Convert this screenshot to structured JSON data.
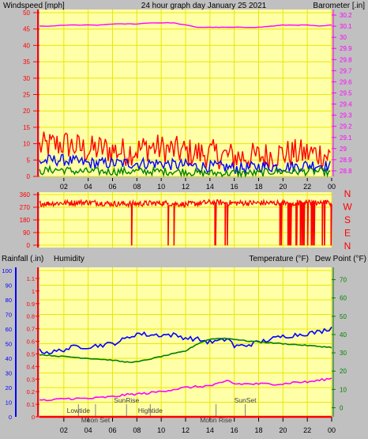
{
  "colors": {
    "background": "#c0c0c0",
    "plot_bg": "#ffffa8",
    "red": "#ff0000",
    "blue": "#0000ff",
    "green": "#008000",
    "magenta": "#ff00ff",
    "yellow": "#e8e800",
    "gray": "#808080"
  },
  "chart_data": [
    {
      "type": "line",
      "id": "wind-baro",
      "title": "24 hour graph day   January 25 2021",
      "left_label": "Windspeed [mph]",
      "right_label": "Barometer [.in]",
      "x_ticks": [
        "02",
        "04",
        "06",
        "08",
        "10",
        "12",
        "14",
        "16",
        "18",
        "20",
        "22",
        "00"
      ],
      "left_ticks": [
        "0",
        "5",
        "10",
        "15",
        "20",
        "25",
        "30",
        "35",
        "40",
        "45",
        "50"
      ],
      "right_ticks": [
        "28.8",
        "28.9",
        "29",
        "29.1",
        "29.2",
        "29.3",
        "29.4",
        "29.5",
        "29.6",
        "29.7",
        "29.8",
        "29.9",
        "30",
        "30.1",
        "30.2"
      ],
      "ylim_left": [
        0,
        50
      ],
      "ylim_right": [
        28.75,
        30.25
      ],
      "xlim": [
        0,
        24
      ],
      "series": [
        {
          "key": "gust",
          "color": "red",
          "x": [
            0,
            1,
            2,
            3,
            4,
            5,
            6,
            7,
            8,
            9,
            10,
            11,
            12,
            13,
            14,
            15,
            16,
            17,
            18,
            19,
            20,
            21,
            22,
            23,
            24
          ],
          "y": [
            9,
            9.5,
            10,
            9,
            8,
            8.5,
            8,
            7.5,
            8,
            9,
            8.5,
            8,
            7.5,
            7,
            7,
            6.5,
            6,
            6,
            6,
            6.5,
            7,
            7,
            7,
            7,
            6
          ]
        },
        {
          "key": "avg",
          "color": "blue",
          "x": [
            0,
            1,
            2,
            3,
            4,
            5,
            6,
            7,
            8,
            9,
            10,
            11,
            12,
            13,
            14,
            15,
            16,
            17,
            18,
            19,
            20,
            21,
            22,
            23,
            24
          ],
          "y": [
            4.5,
            5,
            5,
            4.5,
            4,
            4,
            4,
            4,
            4,
            4,
            4,
            3.5,
            3.5,
            3,
            3,
            3,
            2.5,
            2.5,
            3,
            3,
            3,
            3,
            3.5,
            3.5,
            3
          ]
        },
        {
          "key": "lull",
          "color": "green",
          "x": [
            0,
            1,
            2,
            3,
            4,
            5,
            6,
            7,
            8,
            9,
            10,
            11,
            12,
            13,
            14,
            15,
            16,
            17,
            18,
            19,
            20,
            21,
            22,
            23,
            24
          ],
          "y": [
            1.5,
            2,
            2,
            1.5,
            1.5,
            1.5,
            1.5,
            1.5,
            1.5,
            1.5,
            1.5,
            1.5,
            1.5,
            1,
            1,
            1,
            1,
            1,
            1,
            1.5,
            1.5,
            1.5,
            1.5,
            1.5,
            1
          ]
        },
        {
          "key": "barometer",
          "color": "magenta",
          "axis": "right",
          "x": [
            0,
            1,
            2,
            3,
            4,
            5,
            6,
            7,
            8,
            9,
            10,
            11,
            12,
            13,
            14,
            15,
            16,
            17,
            18,
            19,
            20,
            21,
            22,
            23,
            24
          ],
          "y": [
            30.1,
            30.1,
            30.11,
            30.11,
            30.11,
            30.11,
            30.12,
            30.12,
            30.12,
            30.13,
            30.13,
            30.13,
            30.11,
            30.09,
            30.09,
            30.09,
            30.09,
            30.09,
            30.09,
            30.1,
            30.11,
            30.11,
            30.11,
            30.1,
            30.11
          ]
        }
      ]
    },
    {
      "type": "line",
      "id": "wind-direction",
      "right_labels": [
        "N",
        "W",
        "S",
        "E",
        "N"
      ],
      "left_ticks": [
        "0",
        "90",
        "180",
        "270",
        "360"
      ],
      "ylim": [
        0,
        360
      ],
      "xlim": [
        0,
        24
      ],
      "series": [
        {
          "key": "direction",
          "color": "red",
          "base": [
            0,
            295,
            2,
            300,
            4,
            305,
            6,
            295,
            8,
            295,
            10,
            300,
            12,
            290,
            14,
            305,
            16,
            300,
            18,
            300,
            20,
            300,
            22,
            305,
            24,
            300
          ],
          "drops": [
            [
              7.55,
              0
            ],
            [
              10.55,
              0
            ],
            [
              11.05,
              0
            ],
            [
              14.4,
              0
            ],
            [
              14.45,
              0
            ],
            [
              15.25,
              10
            ],
            [
              15.45,
              10
            ],
            [
              20.65,
              0
            ],
            [
              21.05,
              0
            ],
            [
              23.95,
              0
            ]
          ],
          "dense_dropout_range": [
            19.7,
            23.5
          ]
        }
      ]
    },
    {
      "type": "line",
      "id": "rain-humidity-temp",
      "left_label_rain": "Rainfall (.in)",
      "left_label_humidity": "Humidity",
      "right_label_temp": "Temperature (°F)",
      "right_label_dew": "Dew Point (°F)",
      "x_ticks": [
        "02",
        "04",
        "06",
        "08",
        "10",
        "12",
        "14",
        "16",
        "18",
        "20",
        "22",
        "00"
      ],
      "humidity_ticks": [
        "0",
        "10",
        "20",
        "30",
        "40",
        "50",
        "60",
        "70",
        "80",
        "90",
        "100"
      ],
      "rain_ticks": [
        "0",
        "0.1",
        "0.2",
        "0.3",
        "0.4",
        "0.5",
        "0.6",
        "0.7",
        "0.8",
        "0.9",
        "1",
        "1.1"
      ],
      "temp_ticks": [
        "0",
        "10",
        "20",
        "30",
        "40",
        "50",
        "60",
        "70"
      ],
      "ylim_humidity": [
        0,
        100
      ],
      "ylim_rain": [
        0,
        1.1
      ],
      "ylim_temp": [
        -5,
        75
      ],
      "xlim": [
        0,
        24
      ],
      "annotations": [
        {
          "label": "Lowtide",
          "x": 3.2,
          "row": 2
        },
        {
          "label": "Moon Set",
          "x": 4.6,
          "row": 3
        },
        {
          "label": "SunRise",
          "x": 7.15,
          "row": 1
        },
        {
          "label": "Hightide",
          "x": 9.1,
          "row": 2
        },
        {
          "label": "Moon Rise",
          "x": 14.5,
          "row": 3
        },
        {
          "label": "SunSet",
          "x": 16.9,
          "row": 1
        }
      ],
      "series": [
        {
          "key": "humidity",
          "color": "blue",
          "axis": "humidity",
          "x": [
            0,
            1,
            2,
            3,
            4,
            5,
            6,
            7,
            8,
            9,
            10,
            11,
            12,
            13,
            14,
            15,
            15.5,
            16,
            17,
            18,
            19,
            20,
            21,
            22,
            23,
            24
          ],
          "y": [
            45,
            44,
            46,
            48,
            48,
            49,
            50,
            53,
            57,
            56,
            56,
            56,
            54,
            53,
            51,
            52,
            54,
            48,
            49,
            51,
            53,
            55,
            56,
            57,
            58,
            61
          ]
        },
        {
          "key": "temperature",
          "color": "green",
          "axis": "temp",
          "x": [
            0,
            1,
            2,
            3,
            4,
            5,
            6,
            7,
            8,
            9,
            10,
            11,
            12,
            13,
            14,
            15,
            16,
            17,
            18,
            19,
            20,
            21,
            22,
            23,
            24
          ],
          "y": [
            29,
            28.5,
            28,
            27.5,
            27,
            26.5,
            26,
            25,
            25,
            26.5,
            28,
            29.5,
            31,
            35,
            37.5,
            38,
            37.5,
            36.5,
            36,
            35.5,
            35,
            34.5,
            34,
            33.5,
            33
          ]
        },
        {
          "key": "dew_point",
          "color": "magenta",
          "axis": "temp",
          "x": [
            0,
            1,
            2,
            3,
            4,
            5,
            6,
            7,
            8,
            9,
            10,
            11,
            12,
            13,
            14,
            15,
            15.5,
            16,
            17,
            18,
            19,
            20,
            21,
            22,
            23,
            24
          ],
          "y": [
            4,
            4,
            5,
            5,
            5,
            5.5,
            6,
            7,
            7.5,
            8,
            9,
            10,
            11,
            11.5,
            12,
            13.5,
            15,
            13,
            13,
            13,
            13,
            13,
            14,
            14,
            15,
            16
          ]
        },
        {
          "key": "rainfall",
          "color": "red",
          "axis": "rain",
          "x": [
            0,
            24
          ],
          "y": [
            0,
            0
          ]
        }
      ]
    }
  ]
}
